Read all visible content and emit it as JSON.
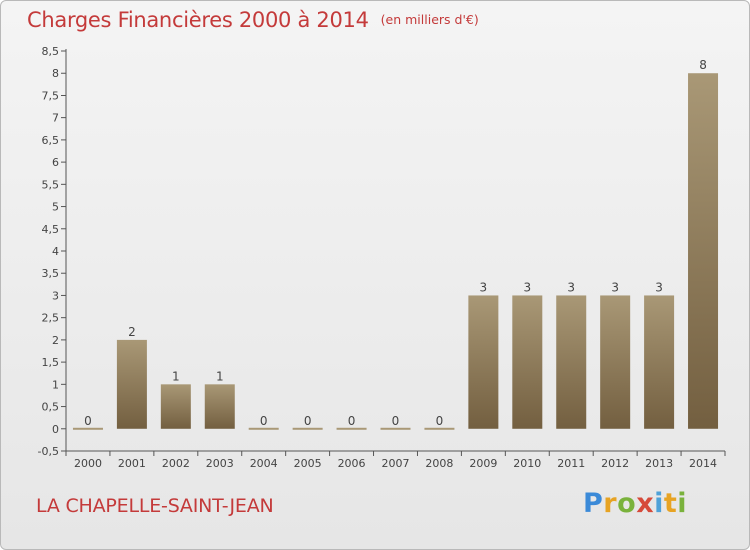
{
  "title": "Charges Financières 2000 à 2014",
  "subtitle": "(en milliers d'€)",
  "place": "LA CHAPELLE-SAINT-JEAN",
  "logo": {
    "letters": [
      "P",
      "r",
      "o",
      "x",
      "i",
      "t",
      "i"
    ],
    "colors": [
      "#3b8ad8",
      "#e7a323",
      "#7ab23c",
      "#d64a3a",
      "#4fa1d8",
      "#e7a323",
      "#7ab23c"
    ]
  },
  "colors": {
    "title": "#c43a3a",
    "bar_top": "#a99876",
    "bar_bottom": "#735f40"
  },
  "chart_data": {
    "type": "bar",
    "categories": [
      "2000",
      "2001",
      "2002",
      "2003",
      "2004",
      "2005",
      "2006",
      "2007",
      "2008",
      "2009",
      "2010",
      "2011",
      "2012",
      "2013",
      "2014"
    ],
    "values": [
      0,
      2,
      1,
      1,
      0,
      0,
      0,
      0,
      0,
      3,
      3,
      3,
      3,
      3,
      8
    ],
    "data_labels": [
      "0",
      "2",
      "1",
      "1",
      "0",
      "0",
      "0",
      "0",
      "0",
      "3",
      "3",
      "3",
      "3",
      "3",
      "8"
    ],
    "title": "Charges Financières 2000 à 2014",
    "xlabel": "",
    "ylabel": "",
    "ylim": [
      -0.5,
      8.5
    ],
    "yticks": [
      "-0,5",
      "0",
      "0,5",
      "1",
      "1,5",
      "2",
      "2,5",
      "3",
      "3,5",
      "4",
      "4,5",
      "5",
      "5,5",
      "6",
      "6,5",
      "7",
      "7,5",
      "8",
      "8,5"
    ],
    "grid": false,
    "legend": "none"
  }
}
